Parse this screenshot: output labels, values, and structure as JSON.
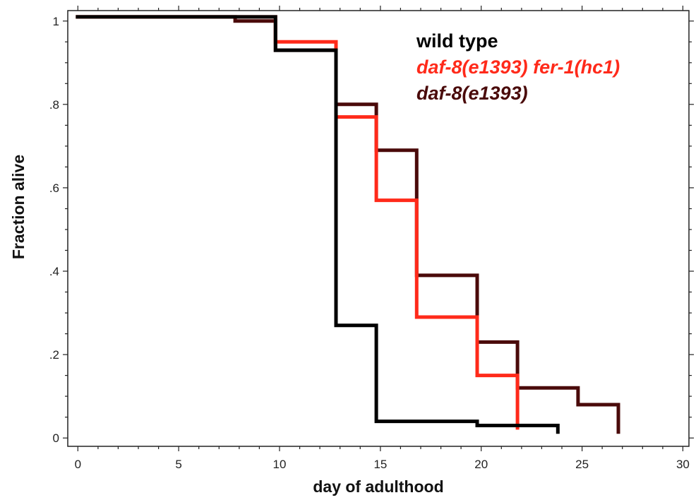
{
  "chart_data": {
    "type": "line",
    "step": true,
    "xlabel": "day of adulthood",
    "ylabel": "Fraction alive",
    "xlim": [
      -0.5,
      30.3
    ],
    "ylim": [
      -0.02,
      1.025
    ],
    "x_ticks": [
      0,
      5,
      10,
      15,
      20,
      25,
      30
    ],
    "x_tick_labels": [
      "0",
      "5",
      "10",
      "15",
      "20",
      "25",
      "30"
    ],
    "y_ticks": [
      0,
      0.2,
      0.4,
      0.6,
      0.8,
      1
    ],
    "y_tick_labels": [
      "0",
      ".2",
      ".4",
      ".6",
      ".8",
      "1"
    ],
    "grid": false,
    "legend_position": "top-right",
    "series": [
      {
        "name": "daf-8(e1393)",
        "color": "#4a0a0a",
        "italic": true,
        "x": [
          -0.1,
          7.8,
          9.8,
          12.8,
          14.8,
          16.8,
          19.8,
          21.8,
          23.8,
          24.8,
          26.8
        ],
        "y": [
          1.01,
          1.0,
          0.93,
          0.8,
          0.69,
          0.39,
          0.23,
          0.12,
          0.12,
          0.08,
          0.01
        ]
      },
      {
        "name": "daf-8(e1393) fer-1(hc1)",
        "color": "#ff2a1a",
        "italic": true,
        "x": [
          -0.1,
          9.8,
          12.8,
          14.8,
          16.8,
          19.8,
          21.8
        ],
        "y": [
          1.01,
          0.95,
          0.77,
          0.57,
          0.29,
          0.15,
          0.02
        ]
      },
      {
        "name": "wild type",
        "color": "#000000",
        "italic": false,
        "x": [
          -0.1,
          9.8,
          12.8,
          14.8,
          19.8,
          23.8
        ],
        "y": [
          1.01,
          0.93,
          0.27,
          0.04,
          0.03,
          0.01
        ]
      }
    ],
    "legend": [
      {
        "label": "wild type",
        "color": "#000000",
        "italic": false
      },
      {
        "label": "daf-8(e1393) fer-1(hc1)",
        "color": "#ff2a1a",
        "italic": true
      },
      {
        "label": "daf-8(e1393)",
        "color": "#4a0a0a",
        "italic": true
      }
    ]
  }
}
